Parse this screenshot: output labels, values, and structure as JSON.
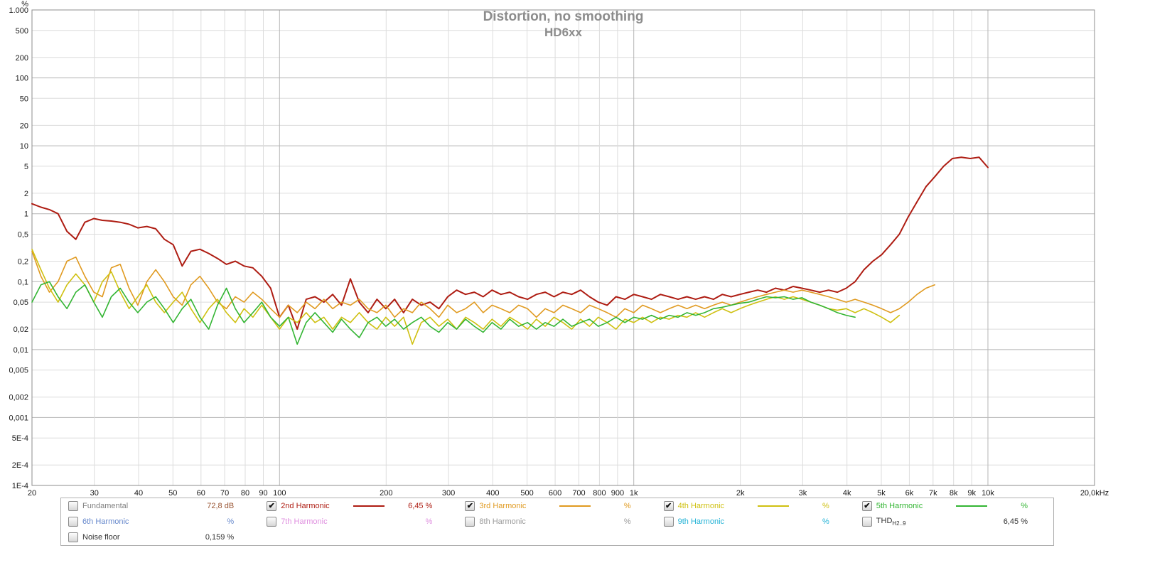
{
  "chart_data": {
    "type": "line",
    "title": "Distortion, no smoothing",
    "subtitle": "HD6xx",
    "x_scale": "log",
    "y_scale": "log",
    "x_range": [
      20,
      20000
    ],
    "y_range": [
      0.0001,
      1000
    ],
    "y_unit": "%",
    "grid": true,
    "legend_position": "bottom",
    "x_ticks": [
      {
        "v": 20,
        "l": "20"
      },
      {
        "v": 30,
        "l": "30"
      },
      {
        "v": 40,
        "l": "40"
      },
      {
        "v": 50,
        "l": "50"
      },
      {
        "v": 60,
        "l": "60"
      },
      {
        "v": 70,
        "l": "70"
      },
      {
        "v": 80,
        "l": "80"
      },
      {
        "v": 90,
        "l": "90"
      },
      {
        "v": 100,
        "l": "100"
      },
      {
        "v": 200,
        "l": "200"
      },
      {
        "v": 300,
        "l": "300"
      },
      {
        "v": 400,
        "l": "400"
      },
      {
        "v": 500,
        "l": "500"
      },
      {
        "v": 600,
        "l": "600"
      },
      {
        "v": 700,
        "l": "700"
      },
      {
        "v": 800,
        "l": "800"
      },
      {
        "v": 900,
        "l": "900"
      },
      {
        "v": 1000,
        "l": "1k"
      },
      {
        "v": 2000,
        "l": "2k"
      },
      {
        "v": 3000,
        "l": "3k"
      },
      {
        "v": 4000,
        "l": "4k"
      },
      {
        "v": 5000,
        "l": "5k"
      },
      {
        "v": 6000,
        "l": "6k"
      },
      {
        "v": 7000,
        "l": "7k"
      },
      {
        "v": 8000,
        "l": "8k"
      },
      {
        "v": 9000,
        "l": "9k"
      },
      {
        "v": 10000,
        "l": "10k"
      },
      {
        "v": 20000,
        "l": "20,0kHz"
      }
    ],
    "y_ticks": [
      {
        "v": 1000,
        "l": "1.000"
      },
      {
        "v": 500,
        "l": "500"
      },
      {
        "v": 200,
        "l": "200"
      },
      {
        "v": 100,
        "l": "100"
      },
      {
        "v": 50,
        "l": "50"
      },
      {
        "v": 20,
        "l": "20"
      },
      {
        "v": 10,
        "l": "10"
      },
      {
        "v": 5,
        "l": "5"
      },
      {
        "v": 2,
        "l": "2"
      },
      {
        "v": 1,
        "l": "1"
      },
      {
        "v": 0.5,
        "l": "0,5"
      },
      {
        "v": 0.2,
        "l": "0,2"
      },
      {
        "v": 0.1,
        "l": "0,1"
      },
      {
        "v": 0.05,
        "l": "0,05"
      },
      {
        "v": 0.02,
        "l": "0,02"
      },
      {
        "v": 0.01,
        "l": "0,01"
      },
      {
        "v": 0.005,
        "l": "0,005"
      },
      {
        "v": 0.002,
        "l": "0,002"
      },
      {
        "v": 0.001,
        "l": "0,001"
      },
      {
        "v": 0.0005,
        "l": "5E-4"
      },
      {
        "v": 0.0002,
        "l": "2E-4"
      },
      {
        "v": 0.0001,
        "l": "1E-4"
      }
    ],
    "freqs": [
      20,
      21.2,
      22.4,
      23.7,
      25.1,
      26.6,
      28.2,
      29.9,
      31.6,
      33.5,
      35.5,
      37.6,
      39.8,
      42.2,
      44.7,
      47.3,
      50.1,
      53.1,
      56.2,
      59.6,
      63.1,
      66.8,
      70.8,
      75,
      79.4,
      84.1,
      89.1,
      94.4,
      100,
      105.9,
      112.2,
      118.9,
      125.9,
      133.4,
      141.3,
      149.6,
      158.5,
      167.9,
      177.8,
      188.4,
      199.5,
      211.3,
      223.9,
      237.1,
      251.2,
      266.1,
      281.8,
      298.5,
      316.2,
      335,
      354.8,
      375.8,
      398.1,
      421.7,
      446.7,
      473.2,
      501.2,
      531,
      562.3,
      595.7,
      631,
      668.3,
      707.9,
      749.9,
      794.3,
      841.4,
      891.3,
      944.1,
      1000,
      1059,
      1122,
      1189,
      1259,
      1334,
      1413,
      1496,
      1585,
      1679,
      1778,
      1884,
      1995,
      2113,
      2239,
      2371,
      2512,
      2661,
      2818,
      2985,
      3162,
      3350,
      3548,
      3758,
      3981,
      4217,
      4467,
      4732,
      5012,
      5310,
      5623,
      5957,
      6310,
      6683,
      7079,
      7499,
      7943,
      8414,
      8913,
      9441,
      10000
    ],
    "series": [
      {
        "name": "2nd Harmonic",
        "color": "#ae1c12",
        "width": 2,
        "values": [
          1.4,
          1.25,
          1.15,
          1.0,
          0.55,
          0.42,
          0.75,
          0.85,
          0.8,
          0.78,
          0.75,
          0.7,
          0.62,
          0.65,
          0.6,
          0.42,
          0.35,
          0.17,
          0.28,
          0.3,
          0.26,
          0.22,
          0.18,
          0.2,
          0.17,
          0.16,
          0.12,
          0.08,
          0.03,
          0.045,
          0.02,
          0.055,
          0.06,
          0.05,
          0.065,
          0.045,
          0.11,
          0.05,
          0.035,
          0.055,
          0.04,
          0.055,
          0.035,
          0.055,
          0.045,
          0.05,
          0.04,
          0.06,
          0.075,
          0.065,
          0.07,
          0.06,
          0.075,
          0.065,
          0.07,
          0.06,
          0.055,
          0.065,
          0.07,
          0.06,
          0.07,
          0.065,
          0.075,
          0.06,
          0.05,
          0.045,
          0.06,
          0.055,
          0.065,
          0.06,
          0.055,
          0.065,
          0.06,
          0.055,
          0.06,
          0.055,
          0.06,
          0.055,
          0.065,
          0.06,
          0.065,
          0.07,
          0.075,
          0.07,
          0.08,
          0.075,
          0.085,
          0.08,
          0.075,
          0.07,
          0.075,
          0.07,
          0.08,
          0.1,
          0.15,
          0.2,
          0.25,
          0.35,
          0.5,
          0.9,
          1.5,
          2.5,
          3.5,
          5.0,
          6.5,
          6.8,
          6.5,
          6.8,
          4.8
        ]
      },
      {
        "name": "3rd Harmonic",
        "color": "#e09a20",
        "width": 1.6,
        "values": [
          0.28,
          0.12,
          0.07,
          0.1,
          0.2,
          0.23,
          0.12,
          0.07,
          0.06,
          0.16,
          0.18,
          0.08,
          0.045,
          0.1,
          0.15,
          0.1,
          0.06,
          0.045,
          0.09,
          0.12,
          0.08,
          0.05,
          0.04,
          0.06,
          0.05,
          0.07,
          0.055,
          0.04,
          0.03,
          0.045,
          0.035,
          0.05,
          0.04,
          0.055,
          0.04,
          0.05,
          0.045,
          0.055,
          0.04,
          0.035,
          0.045,
          0.03,
          0.04,
          0.035,
          0.05,
          0.04,
          0.03,
          0.045,
          0.035,
          0.04,
          0.05,
          0.035,
          0.045,
          0.04,
          0.035,
          0.045,
          0.04,
          0.03,
          0.04,
          0.035,
          0.045,
          0.04,
          0.035,
          0.045,
          0.04,
          0.035,
          0.03,
          0.04,
          0.035,
          0.045,
          0.04,
          0.035,
          0.04,
          0.045,
          0.04,
          0.045,
          0.04,
          0.045,
          0.05,
          0.045,
          0.05,
          0.055,
          0.06,
          0.065,
          0.07,
          0.075,
          0.07,
          0.075,
          0.07,
          0.065,
          0.06,
          0.055,
          0.05,
          0.055,
          0.05,
          0.045,
          0.04,
          0.035,
          0.04,
          0.05,
          0.065,
          0.08,
          0.09
        ]
      },
      {
        "name": "4th Harmonic",
        "color": "#cfc010",
        "width": 1.6,
        "values": [
          0.3,
          0.15,
          0.08,
          0.05,
          0.09,
          0.13,
          0.09,
          0.05,
          0.1,
          0.14,
          0.07,
          0.04,
          0.06,
          0.09,
          0.05,
          0.035,
          0.05,
          0.07,
          0.04,
          0.025,
          0.04,
          0.055,
          0.035,
          0.025,
          0.04,
          0.03,
          0.045,
          0.03,
          0.02,
          0.03,
          0.025,
          0.035,
          0.025,
          0.03,
          0.02,
          0.03,
          0.025,
          0.035,
          0.025,
          0.02,
          0.03,
          0.022,
          0.03,
          0.012,
          0.025,
          0.03,
          0.022,
          0.028,
          0.02,
          0.03,
          0.025,
          0.02,
          0.028,
          0.022,
          0.03,
          0.025,
          0.02,
          0.028,
          0.022,
          0.03,
          0.025,
          0.02,
          0.028,
          0.022,
          0.03,
          0.025,
          0.02,
          0.028,
          0.025,
          0.03,
          0.025,
          0.03,
          0.028,
          0.032,
          0.03,
          0.035,
          0.03,
          0.035,
          0.04,
          0.035,
          0.04,
          0.045,
          0.05,
          0.055,
          0.06,
          0.055,
          0.06,
          0.055,
          0.05,
          0.045,
          0.04,
          0.038,
          0.04,
          0.035,
          0.04,
          0.035,
          0.03,
          0.025,
          0.032
        ]
      },
      {
        "name": "5th Harmonic",
        "color": "#33b533",
        "width": 1.6,
        "values": [
          0.05,
          0.09,
          0.1,
          0.06,
          0.04,
          0.07,
          0.09,
          0.05,
          0.03,
          0.06,
          0.08,
          0.05,
          0.035,
          0.05,
          0.06,
          0.04,
          0.025,
          0.04,
          0.055,
          0.03,
          0.02,
          0.045,
          0.08,
          0.04,
          0.025,
          0.035,
          0.05,
          0.03,
          0.022,
          0.03,
          0.012,
          0.025,
          0.035,
          0.025,
          0.018,
          0.028,
          0.02,
          0.015,
          0.025,
          0.03,
          0.022,
          0.028,
          0.02,
          0.025,
          0.03,
          0.022,
          0.018,
          0.025,
          0.02,
          0.028,
          0.022,
          0.018,
          0.025,
          0.02,
          0.028,
          0.022,
          0.025,
          0.02,
          0.025,
          0.022,
          0.028,
          0.022,
          0.025,
          0.028,
          0.022,
          0.025,
          0.03,
          0.025,
          0.03,
          0.028,
          0.032,
          0.028,
          0.032,
          0.03,
          0.035,
          0.032,
          0.035,
          0.04,
          0.042,
          0.045,
          0.048,
          0.05,
          0.055,
          0.06,
          0.058,
          0.06,
          0.055,
          0.058,
          0.05,
          0.045,
          0.04,
          0.035,
          0.032,
          0.03
        ]
      }
    ]
  },
  "legend": {
    "rows": [
      [
        {
          "label": "Fundamental",
          "label_color": "#808080",
          "checked": false,
          "value": "72,8 dB",
          "value_color": "#995533"
        },
        {
          "label": "2nd Harmonic",
          "label_color": "#ae1c12",
          "checked": true,
          "swatch": "#ae1c12",
          "value": "6,45 %",
          "value_color": "#ae1c12"
        },
        {
          "label": "3rd Harmonic",
          "label_color": "#e09a20",
          "checked": true,
          "swatch": "#e09a20",
          "value": "%",
          "value_color": "#e09a20"
        },
        {
          "label": "4th Harmonic",
          "label_color": "#cfc010",
          "checked": true,
          "swatch": "#cfc010",
          "value": "%",
          "value_color": "#cfc010"
        },
        {
          "label": "5th Harmonic",
          "label_color": "#33b533",
          "checked": true,
          "swatch": "#33b533",
          "value": "%",
          "value_color": "#33b533"
        }
      ],
      [
        {
          "label": "6th Harmonic",
          "label_color": "#6688cc",
          "checked": false,
          "value": "%",
          "value_color": "#6688cc"
        },
        {
          "label": "7th Harmonic",
          "label_color": "#df8fdf",
          "checked": false,
          "value": "%",
          "value_color": "#df8fdf"
        },
        {
          "label": "8th Harmonic",
          "label_color": "#9a9a9a",
          "checked": false,
          "value": "%",
          "value_color": "#9a9a9a"
        },
        {
          "label": "9th Harmonic",
          "label_color": "#22b2d6",
          "checked": false,
          "value": "%",
          "value_color": "#22b2d6"
        },
        {
          "label": "THD",
          "label_sub": "H2..9",
          "label_color": "#333333",
          "checked": false,
          "value": "6,45 %",
          "value_color": "#333333"
        }
      ],
      [
        {
          "label": "Noise floor",
          "label_color": "#333333",
          "checked": false,
          "value": "0,159 %",
          "value_color": "#333333"
        }
      ]
    ]
  }
}
